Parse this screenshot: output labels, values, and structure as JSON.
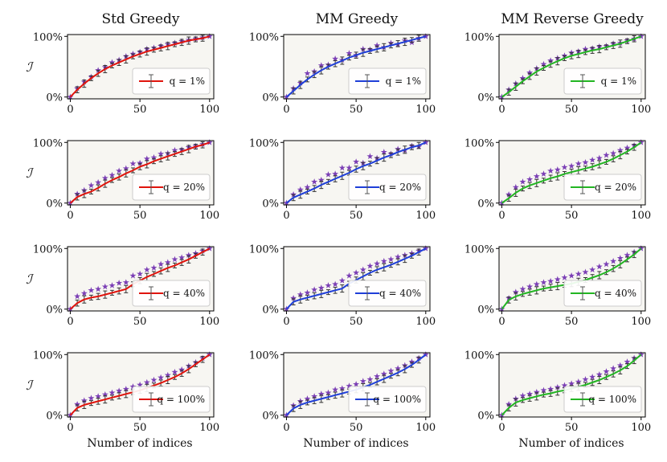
{
  "figure": {
    "ylabel": "ℐ",
    "xlabel": "Number of indices",
    "ytick_labels": [
      "0%",
      "100%"
    ],
    "xtick_labels": [
      "0",
      "50",
      "100"
    ]
  },
  "chart_data": {
    "type": "line",
    "columns": [
      {
        "title": "Std Greedy",
        "color": "#e0140c"
      },
      {
        "title": "MM Greedy",
        "color": "#1f3fd8"
      },
      {
        "title": "MM Reverse Greedy",
        "color": "#22b522"
      }
    ],
    "rows": [
      {
        "q": "1%",
        "legend_label": "q = 1%"
      },
      {
        "q": "20%",
        "legend_label": "q = 20%"
      },
      {
        "q": "40%",
        "legend_label": "q = 40%"
      },
      {
        "q": "100%",
        "legend_label": "q = 100%"
      }
    ],
    "xlim": [
      -2,
      103
    ],
    "ylim": [
      -3,
      103
    ],
    "star_color": "#7b3fb5",
    "errorbar_color": "#555555",
    "x": [
      0,
      5,
      10,
      15,
      20,
      25,
      30,
      35,
      40,
      45,
      50,
      55,
      60,
      65,
      70,
      75,
      80,
      85,
      90,
      95,
      100
    ],
    "panels": [
      [
        {
          "line": [
            0,
            12,
            22,
            31,
            39,
            46,
            52,
            57,
            62,
            67,
            71,
            75,
            78,
            81,
            84,
            87,
            90,
            93,
            95,
            97,
            100
          ],
          "stars": [
            0,
            14,
            25,
            33,
            44,
            49,
            57,
            61,
            67,
            71,
            74,
            79,
            81,
            84,
            87,
            89,
            92,
            94,
            96,
            98,
            100
          ]
        },
        {
          "line": [
            0,
            10,
            20,
            29,
            37,
            44,
            50,
            55,
            60,
            65,
            69,
            73,
            76,
            79,
            82,
            85,
            88,
            91,
            94,
            97,
            100
          ],
          "stars": [
            0,
            14,
            23,
            39,
            42,
            52,
            53,
            63,
            61,
            72,
            69,
            79,
            78,
            85,
            82,
            89,
            87,
            93,
            90,
            97,
            100
          ]
        },
        {
          "line": [
            0,
            8,
            17,
            26,
            34,
            42,
            48,
            54,
            59,
            64,
            68,
            71,
            74,
            77,
            79,
            82,
            85,
            88,
            92,
            96,
            100
          ],
          "stars": [
            0,
            12,
            22,
            31,
            40,
            47,
            54,
            60,
            64,
            68,
            73,
            75,
            79,
            80,
            83,
            84,
            88,
            89,
            93,
            96,
            100
          ]
        }
      ],
      [
        {
          "line": [
            0,
            10,
            15,
            19,
            25,
            32,
            38,
            43,
            49,
            54,
            60,
            64,
            69,
            73,
            77,
            81,
            85,
            89,
            93,
            96,
            100
          ],
          "stars": [
            0,
            15,
            21,
            29,
            34,
            41,
            46,
            53,
            57,
            65,
            66,
            73,
            75,
            81,
            82,
            87,
            88,
            92,
            94,
            97,
            100
          ]
        },
        {
          "line": [
            0,
            9,
            14,
            19,
            24,
            30,
            35,
            40,
            45,
            50,
            56,
            61,
            65,
            70,
            75,
            79,
            84,
            88,
            92,
            95,
            100
          ],
          "stars": [
            0,
            14,
            22,
            26,
            35,
            38,
            47,
            48,
            58,
            58,
            68,
            66,
            77,
            74,
            84,
            81,
            89,
            87,
            94,
            93,
            100
          ]
        },
        {
          "line": [
            0,
            8,
            17,
            24,
            29,
            33,
            37,
            41,
            44,
            48,
            51,
            54,
            57,
            60,
            64,
            68,
            73,
            79,
            85,
            92,
            100
          ],
          "stars": [
            0,
            14,
            26,
            35,
            39,
            44,
            48,
            53,
            55,
            59,
            61,
            65,
            67,
            71,
            74,
            79,
            82,
            87,
            91,
            95,
            100
          ]
        }
      ],
      [
        {
          "line": [
            0,
            10,
            16,
            19,
            21,
            24,
            27,
            30,
            33,
            41,
            47,
            53,
            58,
            63,
            68,
            72,
            77,
            82,
            88,
            94,
            100
          ],
          "stars": [
            0,
            21,
            26,
            31,
            33,
            37,
            39,
            43,
            44,
            55,
            58,
            65,
            68,
            74,
            77,
            82,
            85,
            89,
            92,
            96,
            100
          ]
        },
        {
          "line": [
            0,
            12,
            16,
            19,
            22,
            25,
            28,
            31,
            34,
            42,
            48,
            54,
            60,
            65,
            69,
            73,
            78,
            83,
            88,
            94,
            100
          ],
          "stars": [
            0,
            18,
            24,
            27,
            32,
            35,
            39,
            41,
            47,
            55,
            60,
            65,
            71,
            75,
            79,
            82,
            86,
            89,
            92,
            96,
            100
          ]
        },
        {
          "line": [
            0,
            15,
            21,
            25,
            28,
            31,
            34,
            36,
            38,
            40,
            42,
            45,
            48,
            52,
            56,
            61,
            67,
            74,
            82,
            90,
            100
          ],
          "stars": [
            0,
            18,
            28,
            33,
            37,
            41,
            44,
            46,
            49,
            52,
            55,
            58,
            61,
            65,
            70,
            74,
            79,
            84,
            89,
            94,
            100
          ]
        }
      ],
      [
        {
          "line": [
            0,
            12,
            17,
            20,
            23,
            26,
            29,
            32,
            35,
            38,
            41,
            45,
            49,
            53,
            58,
            63,
            69,
            76,
            84,
            92,
            100
          ],
          "stars": [
            0,
            18,
            24,
            28,
            31,
            34,
            37,
            40,
            43,
            47,
            50,
            54,
            58,
            62,
            66,
            71,
            75,
            81,
            87,
            94,
            100
          ]
        },
        {
          "line": [
            0,
            11,
            17,
            21,
            24,
            27,
            30,
            33,
            36,
            39,
            42,
            46,
            50,
            55,
            60,
            65,
            70,
            76,
            83,
            91,
            100
          ],
          "stars": [
            0,
            16,
            23,
            27,
            31,
            35,
            37,
            42,
            44,
            48,
            51,
            56,
            59,
            64,
            68,
            73,
            77,
            82,
            88,
            94,
            100
          ]
        },
        {
          "line": [
            0,
            12,
            21,
            25,
            28,
            31,
            34,
            36,
            39,
            41,
            44,
            47,
            50,
            54,
            58,
            63,
            68,
            74,
            81,
            90,
            100
          ],
          "stars": [
            0,
            18,
            27,
            32,
            35,
            38,
            41,
            43,
            46,
            49,
            52,
            55,
            59,
            63,
            67,
            72,
            77,
            82,
            88,
            94,
            100
          ]
        }
      ]
    ]
  }
}
